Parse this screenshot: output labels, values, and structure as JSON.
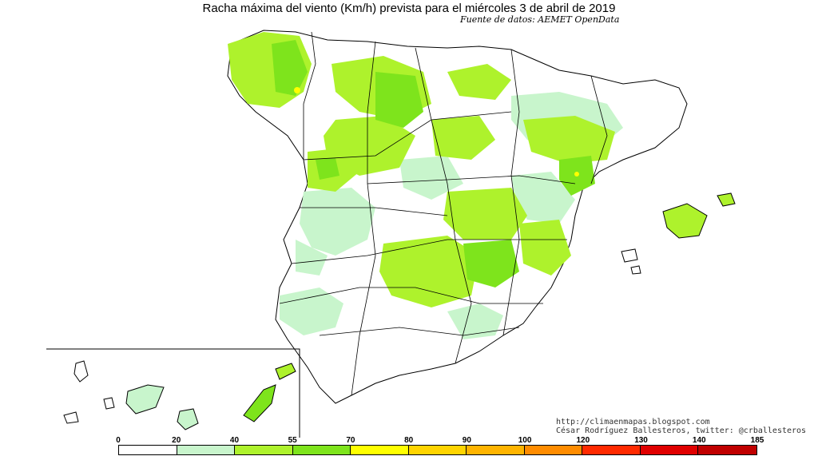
{
  "header": {
    "title": "Racha máxima del viento (Km/h) prevista para el miércoles 3 de abril de 2019",
    "source": "Fuente de datos: AEMET OpenData"
  },
  "credits": {
    "url": "http://climaenmapas.blogspot.com",
    "author": "César Rodríguez Ballesteros, twitter: @crballesteros"
  },
  "legend": {
    "ticks": [
      "0",
      "20",
      "40",
      "55",
      "70",
      "80",
      "90",
      "100",
      "120",
      "130",
      "140",
      "185"
    ],
    "colors": [
      "#ffffff",
      "#c8f5cc",
      "#aef22c",
      "#7ee41c",
      "#ffff00",
      "#ffd400",
      "#ffb400",
      "#ff8c00",
      "#ff2a00",
      "#e00000",
      "#c00000"
    ]
  },
  "map_colors": {
    "calm": "#ffffff",
    "light": "#c8f5cc",
    "moderate": "#aef22c",
    "strong": "#7ee41c",
    "hot": "#ffff00",
    "border": "#000000"
  }
}
